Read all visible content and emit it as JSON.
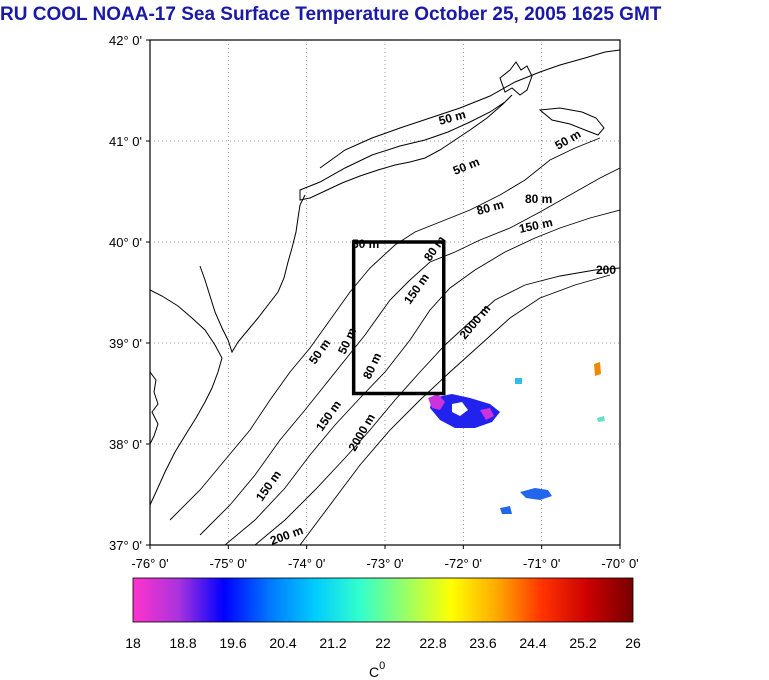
{
  "title": "RU COOL  NOAA-17 Sea Surface Temperature October 25, 2005 1625 GMT",
  "map": {
    "lat_ticks": [
      "42° 0'",
      "41° 0'",
      "40° 0'",
      "39° 0'",
      "38° 0'",
      "37° 0'"
    ],
    "lon_ticks": [
      "-76° 0'",
      "-75° 0'",
      "-74° 0'",
      "-73° 0'",
      "-72° 0'",
      "-71° 0'",
      "-70° 0'"
    ],
    "contour_labels": [
      {
        "id": "c50a",
        "text": "50 m"
      },
      {
        "id": "c50b",
        "text": "50 m"
      },
      {
        "id": "c50c",
        "text": "50 m"
      },
      {
        "id": "c80a",
        "text": "80 m"
      },
      {
        "id": "c80b",
        "text": "80 m"
      },
      {
        "id": "c150a",
        "text": "150 m"
      },
      {
        "id": "c200a",
        "text": "200"
      },
      {
        "id": "c2000a",
        "text": "2000 m"
      },
      {
        "id": "c50d",
        "text": "50 m"
      },
      {
        "id": "c80c",
        "text": "80 m"
      },
      {
        "id": "c150b",
        "text": "150 m"
      },
      {
        "id": "c50e",
        "text": "50 m"
      },
      {
        "id": "c50f",
        "text": "50 m"
      },
      {
        "id": "c80d",
        "text": "80 m"
      },
      {
        "id": "c150c",
        "text": "150 m"
      },
      {
        "id": "c2000b",
        "text": "2000 m"
      },
      {
        "id": "c150d",
        "text": "150 m"
      },
      {
        "id": "c200b",
        "text": "200 m"
      }
    ],
    "study_box": {
      "lon_min": -73.4,
      "lon_max": -72.25,
      "lat_min": 38.5,
      "lat_max": 40.0
    }
  },
  "colorbar": {
    "ticks": [
      "18",
      "18.8",
      "19.6",
      "20.4",
      "21.2",
      "22",
      "22.8",
      "23.6",
      "24.4",
      "25.2",
      "26"
    ],
    "unit": "C",
    "unit_sup": "0",
    "colors": [
      "#ff33cc",
      "#aa33dd",
      "#0000ff",
      "#0077ff",
      "#00ccff",
      "#33ffcc",
      "#99ff66",
      "#ffff00",
      "#ffaa00",
      "#ff3300",
      "#cc0000",
      "#770000"
    ]
  }
}
